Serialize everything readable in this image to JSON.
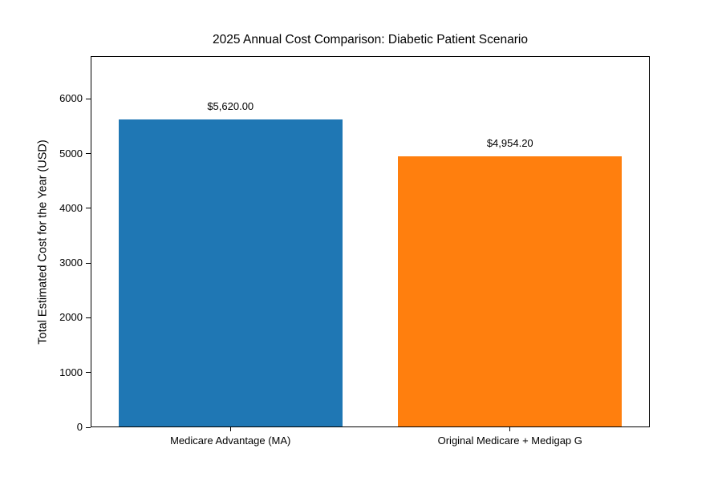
{
  "chart_data": {
    "type": "bar",
    "title": "2025 Annual Cost Comparison: Diabetic Patient Scenario",
    "ylabel": "Total Estimated Cost for the Year (USD)",
    "xlabel": "",
    "categories": [
      "Medicare Advantage (MA)",
      "Original Medicare + Medigap G"
    ],
    "values": [
      5620.0,
      4954.2
    ],
    "value_labels": [
      "$5,620.00",
      "$4,954.20"
    ],
    "bar_colors": [
      "#1f77b4",
      "#ff7f0e"
    ],
    "ylim": [
      0,
      6780
    ],
    "yticks": [
      0,
      1000,
      2000,
      3000,
      4000,
      5000,
      6000
    ],
    "bar_width_fraction": 0.8,
    "grid": false,
    "legend": null,
    "background_color": "#ffffff",
    "spine_color": "#000000"
  }
}
